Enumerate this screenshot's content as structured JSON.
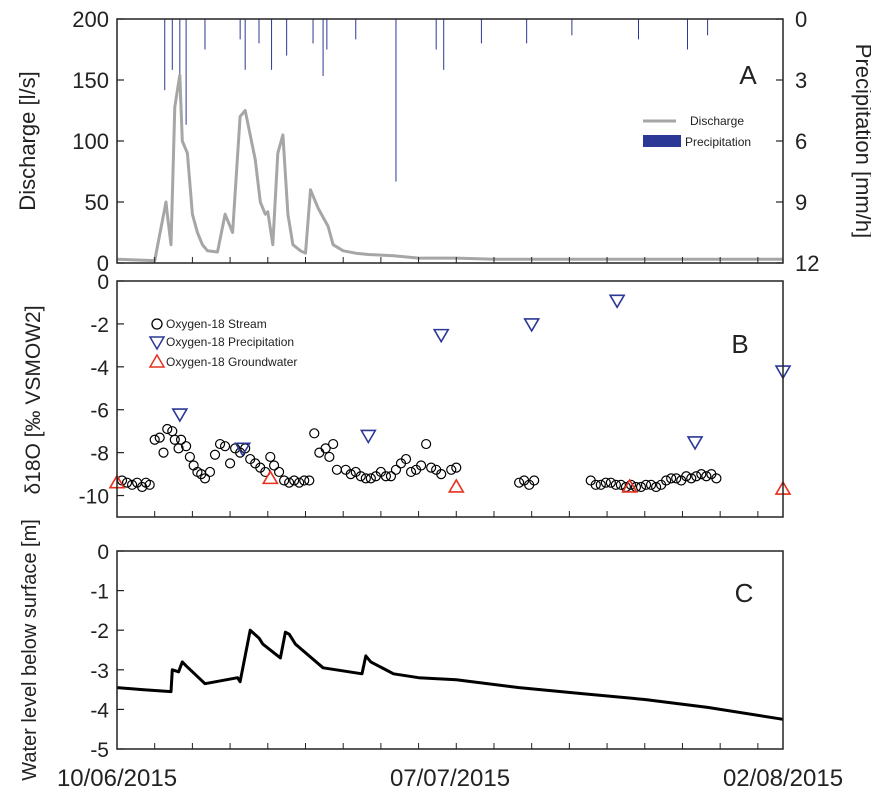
{
  "x_axis": {
    "ticks": [
      "10/06/2015",
      "07/07/2015",
      "02/08/2015"
    ],
    "range": [
      "2015-06-10",
      "2015-08-02"
    ]
  },
  "colors": {
    "discharge": "#a6a6a6",
    "precipitation": "#2b3896",
    "stream": "#000000",
    "groundwater": "#e8301e",
    "water_level": "#000000"
  },
  "chart_data": [
    {
      "type": "line",
      "panel": "A",
      "panel_label": "A",
      "ylabel": "Discharge [l/s]",
      "ylim": [
        0,
        200
      ],
      "yticks": [
        0,
        50,
        100,
        150,
        200
      ],
      "y2label": "Precipitation [mm/h]",
      "y2lim": [
        12,
        0
      ],
      "y2ticks": [
        0,
        3,
        6,
        9,
        12
      ],
      "legend": [
        "Discharge",
        "Precipitation"
      ],
      "legend_position": "right",
      "series": [
        {
          "name": "Discharge",
          "x": [
            "2015-06-10",
            "2015-06-13",
            "2015-06-13.9",
            "2015-06-14",
            "2015-06-14.3",
            "2015-06-14.6",
            "2015-06-15",
            "2015-06-15.2",
            "2015-06-15.6",
            "2015-06-16",
            "2015-06-16.4",
            "2015-06-16.8",
            "2015-06-17.2",
            "2015-06-18",
            "2015-06-18.6",
            "2015-06-19.2",
            "2015-06-19.8",
            "2015-06-20.2",
            "2015-06-21",
            "2015-06-21.4",
            "2015-06-21.8",
            "2015-06-22",
            "2015-06-22.4",
            "2015-06-22.8",
            "2015-06-23.2",
            "2015-06-23.6",
            "2015-06-24",
            "2015-06-24.6",
            "2015-06-25",
            "2015-06-25.4",
            "2015-06-26",
            "2015-06-26.8",
            "2015-06-27.2",
            "2015-06-28",
            "2015-06-29",
            "2015-06-30",
            "2015-07-02",
            "2015-07-04",
            "2015-07-07",
            "2015-07-10",
            "2015-07-15",
            "2015-07-20",
            "2015-07-25",
            "2015-08-02"
          ],
          "values": [
            3,
            2,
            50,
            40,
            15,
            128,
            154,
            100,
            90,
            40,
            25,
            15,
            10,
            9,
            40,
            25,
            120,
            125,
            85,
            50,
            40,
            42,
            15,
            90,
            105,
            40,
            15,
            10,
            8,
            60,
            45,
            30,
            15,
            10,
            8,
            7,
            6,
            4,
            4,
            3,
            3,
            3,
            3,
            3
          ]
        },
        {
          "name": "Precipitation",
          "x": [
            "2015-06-13.8",
            "2015-06-14.4",
            "2015-06-15",
            "2015-06-15.5",
            "2015-06-17",
            "2015-06-19.8",
            "2015-06-20.2",
            "2015-06-21.3",
            "2015-06-22.3",
            "2015-06-23.5",
            "2015-06-25.6",
            "2015-06-26.4",
            "2015-06-26.7",
            "2015-06-29",
            "2015-07-02.2",
            "2015-07-05.4",
            "2015-07-06",
            "2015-07-09",
            "2015-07-12.6",
            "2015-07-16.2",
            "2015-07-21.5",
            "2015-07-25.4",
            "2015-07-27"
          ],
          "values": [
            3.5,
            2.5,
            4,
            5.2,
            1.5,
            1,
            2.5,
            1.2,
            2.5,
            1.8,
            1.2,
            2.8,
            1.5,
            1,
            8,
            1.5,
            2.5,
            1.2,
            1.2,
            0.8,
            1,
            1.5,
            0.8
          ]
        }
      ]
    },
    {
      "type": "scatter",
      "panel": "B",
      "panel_label": "B",
      "ylabel": "δ18O [‰ VSMOW2]",
      "ylim": [
        -11,
        0
      ],
      "yticks": [
        0,
        -2,
        -4,
        -6,
        -8,
        -10
      ],
      "legend": [
        "Oxygen-18 Stream",
        "Oxygen-18 Precipitation",
        "Oxygen-18 Groundwater"
      ],
      "legend_position": "top-left",
      "series": [
        {
          "name": "Oxygen-18 Stream",
          "marker": "circle",
          "x": [
            "2015-06-10.4",
            "2015-06-10.8",
            "2015-06-11.2",
            "2015-06-11.6",
            "2015-06-12",
            "2015-06-12.3",
            "2015-06-12.6",
            "2015-06-13",
            "2015-06-13.4",
            "2015-06-13.7",
            "2015-06-14",
            "2015-06-14.4",
            "2015-06-14.6",
            "2015-06-14.9",
            "2015-06-15.1",
            "2015-06-15.5",
            "2015-06-15.8",
            "2015-06-16.1",
            "2015-06-16.4",
            "2015-06-16.7",
            "2015-06-17",
            "2015-06-17.4",
            "2015-06-17.8",
            "2015-06-18.2",
            "2015-06-18.6",
            "2015-06-19",
            "2015-06-19.4",
            "2015-06-19.8",
            "2015-06-20.2",
            "2015-06-20.6",
            "2015-06-21",
            "2015-06-21.4",
            "2015-06-21.8",
            "2015-06-22.2",
            "2015-06-22.5",
            "2015-06-22.9",
            "2015-06-23.3",
            "2015-06-23.7",
            "2015-06-24.1",
            "2015-06-24.5",
            "2015-06-24.9",
            "2015-06-25.3",
            "2015-06-25.7",
            "2015-06-26.1",
            "2015-06-26.6",
            "2015-06-26.9",
            "2015-06-27.2",
            "2015-06-27.5",
            "2015-06-28.2",
            "2015-06-28.6",
            "2015-06-29",
            "2015-06-29.4",
            "2015-06-29.8",
            "2015-06-30.2",
            "2015-06-30.6",
            "2015-07-01",
            "2015-07-01.4",
            "2015-07-01.8",
            "2015-07-02.2",
            "2015-07-02.6",
            "2015-07-03",
            "2015-07-03.4",
            "2015-07-03.8",
            "2015-07-04.2",
            "2015-07-04.6",
            "2015-07-05",
            "2015-07-05.4",
            "2015-07-05.8",
            "2015-07-06.6",
            "2015-07-07",
            "2015-07-12",
            "2015-07-12.4",
            "2015-07-12.8",
            "2015-07-13.2",
            "2015-07-17.7",
            "2015-07-18.1",
            "2015-07-18.5",
            "2015-07-18.9",
            "2015-07-19.3",
            "2015-07-19.7",
            "2015-07-20.1",
            "2015-07-20.5",
            "2015-07-20.9",
            "2015-07-21.3",
            "2015-07-21.7",
            "2015-07-22.1",
            "2015-07-22.5",
            "2015-07-22.9",
            "2015-07-23.3",
            "2015-07-23.7",
            "2015-07-24.1",
            "2015-07-24.5",
            "2015-07-24.9",
            "2015-07-25.3",
            "2015-07-25.7",
            "2015-07-26.1",
            "2015-07-26.5",
            "2015-07-26.9",
            "2015-07-27.3",
            "2015-07-27.7"
          ],
          "values": [
            -9.3,
            -9.4,
            -9.5,
            -9.4,
            -9.6,
            -9.4,
            -9.5,
            -7.4,
            -7.3,
            -8,
            -6.9,
            -7,
            -7.4,
            -7.8,
            -7.4,
            -7.7,
            -8.2,
            -8.6,
            -8.9,
            -9,
            -9.2,
            -8.9,
            -8.1,
            -7.6,
            -7.7,
            -8.5,
            -7.8,
            -8,
            -7.8,
            -8.3,
            -8.5,
            -8.7,
            -8.9,
            -8.2,
            -8.6,
            -8.9,
            -9.3,
            -9.4,
            -9.3,
            -9.4,
            -9.3,
            -9.3,
            -7.1,
            -8,
            -7.8,
            -8.2,
            -7.6,
            -8.8,
            -8.8,
            -9,
            -8.9,
            -9.1,
            -9.2,
            -9.2,
            -9.1,
            -8.9,
            -9.1,
            -9.1,
            -8.8,
            -8.5,
            -8.3,
            -8.9,
            -8.8,
            -8.6,
            -7.6,
            -8.7,
            -8.8,
            -9,
            -8.8,
            -8.7,
            -9.4,
            -9.3,
            -9.5,
            -9.3,
            -9.3,
            -9.5,
            -9.5,
            -9.4,
            -9.4,
            -9.5,
            -9.5,
            -9.6,
            -9.5,
            -9.6,
            -9.6,
            -9.5,
            -9.5,
            -9.6,
            -9.5,
            -9.3,
            -9.2,
            -9.2,
            -9.3,
            -9.1,
            -9.2,
            -9.1,
            -9.0,
            -9.1,
            -9.0,
            -9.2
          ]
        },
        {
          "name": "Oxygen-18 Precipitation",
          "marker": "triangle-down",
          "x": [
            "2015-06-15",
            "2015-06-20",
            "2015-06-30",
            "2015-07-05.8",
            "2015-07-13",
            "2015-07-19.8",
            "2015-07-26",
            "2015-08-02"
          ],
          "values": [
            -6.2,
            -7.8,
            -7.2,
            -2.5,
            -2,
            -0.9,
            -7.5,
            -4.2
          ]
        },
        {
          "name": "Oxygen-18 Groundwater",
          "marker": "triangle-up",
          "x": [
            "2015-06-10",
            "2015-06-22.2",
            "2015-07-07",
            "2015-07-20.8",
            "2015-08-02"
          ],
          "values": [
            -9.4,
            -9.2,
            -9.6,
            -9.6,
            -9.7
          ]
        }
      ]
    },
    {
      "type": "line",
      "panel": "C",
      "panel_label": "C",
      "ylabel": "Water level below surface [m]",
      "ylim": [
        -5,
        0
      ],
      "yticks": [
        0,
        -1,
        -2,
        -3,
        -4,
        -5
      ],
      "series": [
        {
          "name": "",
          "x": [
            "2015-06-10",
            "2015-06-12",
            "2015-06-14.3",
            "2015-06-14.4",
            "2015-06-14.9",
            "2015-06-15.2",
            "2015-06-15.5",
            "2015-06-17",
            "2015-06-19.6",
            "2015-06-19.8",
            "2015-06-20.6",
            "2015-06-21.3",
            "2015-06-21.6",
            "2015-06-23",
            "2015-06-23.4",
            "2015-06-23.7",
            "2015-06-24.2",
            "2015-06-26.4",
            "2015-06-29.5",
            "2015-06-29.8",
            "2015-06-30.2",
            "2015-07-02",
            "2015-07-04",
            "2015-07-07",
            "2015-07-12",
            "2015-07-17",
            "2015-07-22",
            "2015-07-27",
            "2015-08-02"
          ],
          "values": [
            -3.45,
            -3.5,
            -3.55,
            -3.0,
            -3.05,
            -2.8,
            -2.9,
            -3.35,
            -3.2,
            -3.3,
            -2.0,
            -2.2,
            -2.35,
            -2.7,
            -2.05,
            -2.1,
            -2.35,
            -2.95,
            -3.1,
            -2.65,
            -2.8,
            -3.1,
            -3.2,
            -3.25,
            -3.45,
            -3.6,
            -3.75,
            -3.95,
            -4.25
          ]
        }
      ]
    }
  ]
}
